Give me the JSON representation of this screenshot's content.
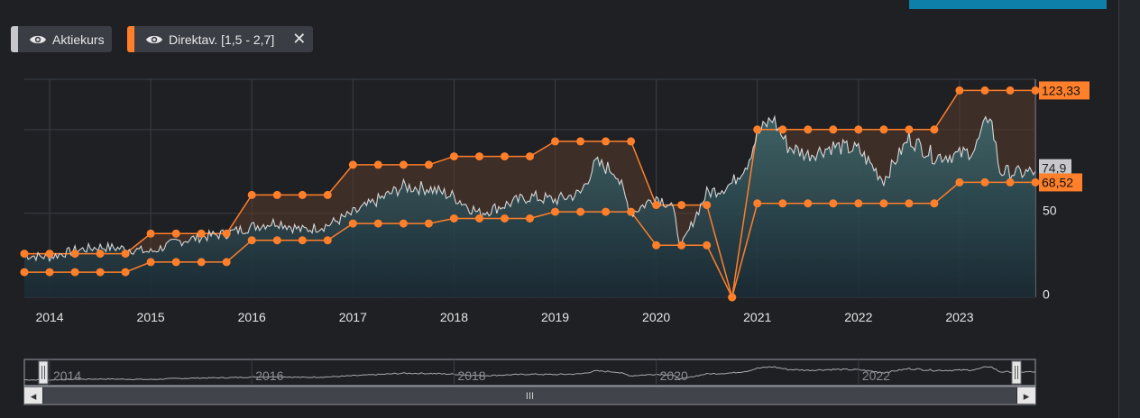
{
  "legend": {
    "items": [
      {
        "label": "Aktiekurs",
        "color": "#c8c8cc"
      },
      {
        "label": "Direktav. [1,5 - 2,7]",
        "color": "#ff7f2a"
      }
    ]
  },
  "colors": {
    "price_line": "#d6d6d6",
    "band": "#ff7f2a",
    "price_fill_top": "#3e6a6e",
    "price_fill_bottom": "#1a2a34",
    "band_fill": "#5a3a2c",
    "grid": "#3b3e43",
    "label_bg": "#ff7f2a"
  },
  "chart_data": {
    "type": "line",
    "x_ticks": [
      "2014",
      "2015",
      "2016",
      "2017",
      "2018",
      "2019",
      "2020",
      "2021",
      "2022",
      "2023"
    ],
    "y_ticks": [
      "0",
      "50"
    ],
    "ylim": [
      0,
      130
    ],
    "xlim": [
      2013.75,
      2023.75
    ],
    "current_price_label": "74,9",
    "band_upper_label": "123,33",
    "band_lower_label": "68,52",
    "series": [
      {
        "name": "Aktiekurs",
        "x": [
          2013.75,
          2014.0,
          2014.25,
          2014.5,
          2014.75,
          2015.0,
          2015.25,
          2015.5,
          2015.75,
          2016.0,
          2016.25,
          2016.5,
          2016.75,
          2017.0,
          2017.25,
          2017.5,
          2017.75,
          2018.0,
          2018.25,
          2018.5,
          2018.75,
          2019.0,
          2019.25,
          2019.4,
          2019.6,
          2019.75,
          2020.0,
          2020.15,
          2020.25,
          2020.4,
          2020.5,
          2020.65,
          2020.75,
          2020.9,
          2021.0,
          2021.15,
          2021.3,
          2021.5,
          2021.75,
          2022.0,
          2022.25,
          2022.5,
          2022.75,
          2023.0,
          2023.15,
          2023.3,
          2023.4,
          2023.6,
          2023.75
        ],
        "y": [
          25,
          24,
          28,
          30,
          29,
          27,
          33,
          36,
          38,
          42,
          45,
          40,
          43,
          50,
          58,
          66,
          65,
          60,
          50,
          55,
          60,
          58,
          62,
          80,
          75,
          50,
          60,
          55,
          30,
          50,
          62,
          65,
          68,
          80,
          97,
          107,
          90,
          85,
          90,
          88,
          70,
          95,
          84,
          85,
          88,
          110,
          75,
          74,
          75
        ]
      },
      {
        "name": "Direktav. [1,5 - 2,7]",
        "role": "upper",
        "x": [
          2013.75,
          2014.0,
          2014.25,
          2014.5,
          2014.75,
          2015.0,
          2015.25,
          2015.5,
          2015.75,
          2016.0,
          2016.25,
          2016.5,
          2016.75,
          2017.0,
          2017.25,
          2017.5,
          2017.75,
          2018.0,
          2018.25,
          2018.5,
          2018.75,
          2019.0,
          2019.25,
          2019.5,
          2019.75,
          2020.0,
          2020.25,
          2020.5,
          2020.75,
          2021.0,
          2021.25,
          2021.5,
          2021.75,
          2022.0,
          2022.25,
          2022.5,
          2022.75,
          2023.0,
          2023.25,
          2023.5,
          2023.75
        ],
        "y": [
          26,
          26,
          26,
          26,
          26,
          38,
          38,
          38,
          38,
          61,
          61,
          61,
          61,
          79,
          79,
          79,
          79,
          84,
          84,
          84,
          84,
          93,
          93,
          93,
          93,
          55,
          55,
          55,
          0,
          100,
          100,
          100,
          100,
          100,
          100,
          100,
          100,
          123.33,
          123.33,
          123.33,
          123.33
        ]
      },
      {
        "name": "Direktav. [1,5 - 2,7]",
        "role": "lower",
        "x": [
          2013.75,
          2014.0,
          2014.25,
          2014.5,
          2014.75,
          2015.0,
          2015.25,
          2015.5,
          2015.75,
          2016.0,
          2016.25,
          2016.5,
          2016.75,
          2017.0,
          2017.25,
          2017.5,
          2017.75,
          2018.0,
          2018.25,
          2018.5,
          2018.75,
          2019.0,
          2019.25,
          2019.5,
          2019.75,
          2020.0,
          2020.25,
          2020.5,
          2020.75,
          2021.0,
          2021.25,
          2021.5,
          2021.75,
          2022.0,
          2022.25,
          2022.5,
          2022.75,
          2023.0,
          2023.25,
          2023.5,
          2023.75
        ],
        "y": [
          15,
          15,
          15,
          15,
          15,
          21,
          21,
          21,
          21,
          34,
          34,
          34,
          34,
          44,
          44,
          44,
          44,
          47,
          47,
          47,
          47,
          51,
          51,
          51,
          51,
          31,
          31,
          31,
          0,
          56,
          56,
          56,
          56,
          56,
          56,
          56,
          56,
          68.52,
          68.52,
          68.52,
          68.52
        ]
      }
    ]
  },
  "navigator": {
    "x_ticks": [
      "2014",
      "2016",
      "2018",
      "2020",
      "2022"
    ],
    "grip_symbol": "III",
    "left_arrow": "◂",
    "right_arrow": "▸"
  }
}
